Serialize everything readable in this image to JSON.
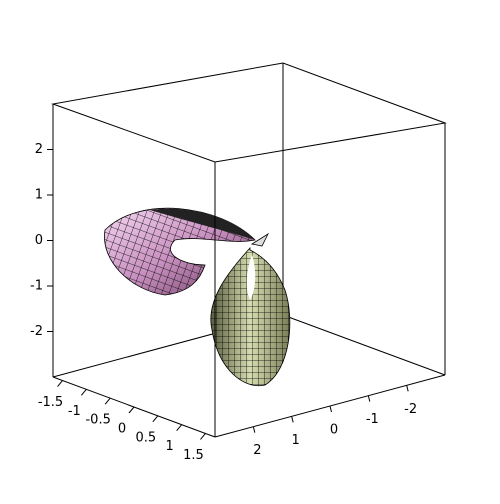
{
  "chart_data": {
    "type": "surface3d",
    "xlim": [
      -1.7,
      1.7
    ],
    "xticks": [
      -1.5,
      -1,
      -0.5,
      0,
      0.5,
      1,
      1.5
    ],
    "ylim": [
      3,
      -3
    ],
    "yticks": [
      2,
      1,
      0,
      -1,
      -2
    ],
    "zlim": [
      -3,
      3
    ],
    "zticks": [
      -2,
      -1,
      0,
      1,
      2
    ]
  }
}
